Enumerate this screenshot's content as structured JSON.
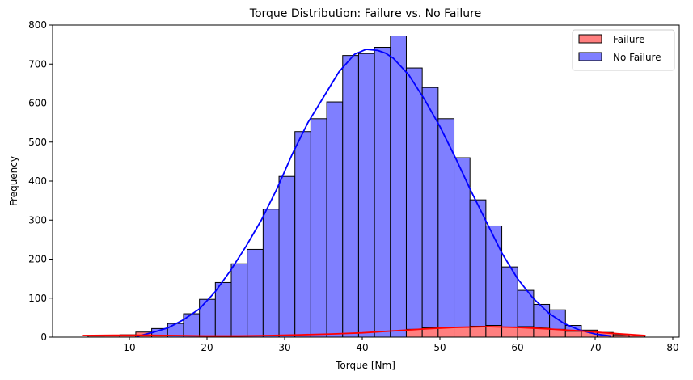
{
  "chart_data": {
    "type": "bar",
    "title": "Torque Distribution: Failure vs. No Failure",
    "xlabel": "Torque [Nm]",
    "ylabel": "Frequency",
    "xlim": [
      0,
      80
    ],
    "ylim": [
      0,
      800
    ],
    "xticks": [
      10,
      20,
      30,
      40,
      50,
      60,
      70,
      80
    ],
    "yticks": [
      0,
      100,
      200,
      300,
      400,
      500,
      600,
      700,
      800
    ],
    "grid": false,
    "legend_position": "top-right",
    "bin_width": 2.05,
    "series": [
      {
        "name": "No Failure",
        "color": "#0000ff",
        "fill": "#7f7fff",
        "bins": [
          {
            "x": 11.85,
            "y": 5
          },
          {
            "x": 13.9,
            "y": 22
          },
          {
            "x": 15.95,
            "y": 35
          },
          {
            "x": 18.0,
            "y": 60
          },
          {
            "x": 20.05,
            "y": 97
          },
          {
            "x": 22.1,
            "y": 140
          },
          {
            "x": 24.15,
            "y": 188
          },
          {
            "x": 26.2,
            "y": 225
          },
          {
            "x": 28.25,
            "y": 328
          },
          {
            "x": 30.3,
            "y": 412
          },
          {
            "x": 32.35,
            "y": 527
          },
          {
            "x": 34.4,
            "y": 560
          },
          {
            "x": 36.45,
            "y": 603
          },
          {
            "x": 38.5,
            "y": 722
          },
          {
            "x": 40.55,
            "y": 727
          },
          {
            "x": 42.6,
            "y": 743
          },
          {
            "x": 44.65,
            "y": 772
          },
          {
            "x": 46.7,
            "y": 690
          },
          {
            "x": 48.75,
            "y": 640
          },
          {
            "x": 50.8,
            "y": 560
          },
          {
            "x": 52.85,
            "y": 460
          },
          {
            "x": 54.9,
            "y": 352
          },
          {
            "x": 56.95,
            "y": 285
          },
          {
            "x": 59.0,
            "y": 180
          },
          {
            "x": 61.05,
            "y": 120
          },
          {
            "x": 63.1,
            "y": 84
          },
          {
            "x": 65.15,
            "y": 70
          },
          {
            "x": 67.2,
            "y": 30
          },
          {
            "x": 69.25,
            "y": 12
          },
          {
            "x": 71.3,
            "y": 5
          }
        ],
        "kde": [
          [
            11,
            2
          ],
          [
            13,
            12
          ],
          [
            15,
            24
          ],
          [
            17,
            45
          ],
          [
            19,
            72
          ],
          [
            21,
            115
          ],
          [
            23,
            170
          ],
          [
            25,
            232
          ],
          [
            27,
            300
          ],
          [
            29,
            380
          ],
          [
            31,
            470
          ],
          [
            33,
            550
          ],
          [
            35,
            615
          ],
          [
            37,
            680
          ],
          [
            39,
            725
          ],
          [
            40.5,
            738
          ],
          [
            42,
            735
          ],
          [
            43,
            728
          ],
          [
            44,
            715
          ],
          [
            46,
            672
          ],
          [
            48,
            610
          ],
          [
            50,
            540
          ],
          [
            52,
            460
          ],
          [
            54,
            375
          ],
          [
            56,
            295
          ],
          [
            58,
            215
          ],
          [
            60,
            150
          ],
          [
            62,
            100
          ],
          [
            64,
            62
          ],
          [
            66,
            35
          ],
          [
            68,
            18
          ],
          [
            70,
            8
          ],
          [
            72,
            3
          ]
        ]
      },
      {
        "name": "Failure",
        "color": "#ff0000",
        "fill": "#ff7f7f",
        "bins": [
          {
            "x": 5.7,
            "y": 3
          },
          {
            "x": 7.75,
            "y": 5
          },
          {
            "x": 9.8,
            "y": 6
          },
          {
            "x": 11.85,
            "y": 13
          },
          {
            "x": 13.9,
            "y": 5
          },
          {
            "x": 46.7,
            "y": 20
          },
          {
            "x": 48.75,
            "y": 24
          },
          {
            "x": 50.8,
            "y": 25
          },
          {
            "x": 52.85,
            "y": 25
          },
          {
            "x": 54.9,
            "y": 28
          },
          {
            "x": 56.95,
            "y": 30
          },
          {
            "x": 59.0,
            "y": 26
          },
          {
            "x": 61.05,
            "y": 27
          },
          {
            "x": 63.1,
            "y": 25
          },
          {
            "x": 65.15,
            "y": 20
          },
          {
            "x": 67.2,
            "y": 15
          },
          {
            "x": 69.25,
            "y": 18
          },
          {
            "x": 71.3,
            "y": 12
          },
          {
            "x": 73.35,
            "y": 6
          },
          {
            "x": 75.4,
            "y": 3
          }
        ],
        "kde": [
          [
            4,
            4
          ],
          [
            8,
            5
          ],
          [
            12,
            5
          ],
          [
            16,
            4
          ],
          [
            20,
            3
          ],
          [
            24,
            3
          ],
          [
            28,
            4
          ],
          [
            32,
            6
          ],
          [
            36,
            8
          ],
          [
            40,
            11
          ],
          [
            44,
            16
          ],
          [
            48,
            21
          ],
          [
            52,
            25
          ],
          [
            56,
            27
          ],
          [
            60,
            25
          ],
          [
            64,
            21
          ],
          [
            68,
            16
          ],
          [
            72,
            10
          ],
          [
            76.5,
            4
          ]
        ]
      }
    ]
  }
}
